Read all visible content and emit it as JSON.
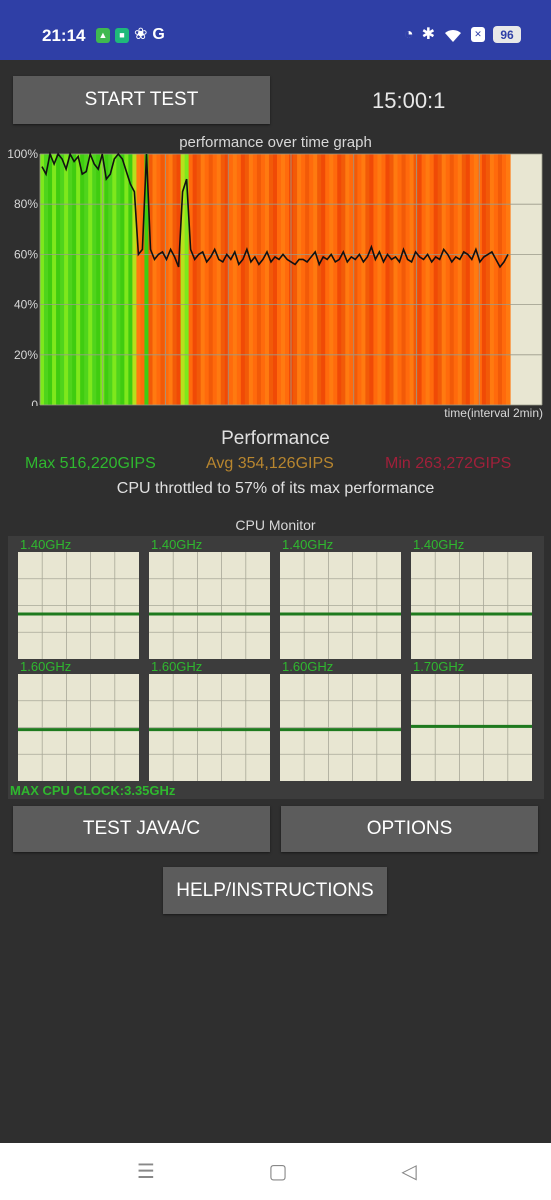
{
  "status_bar": {
    "time": "21:14",
    "google_letter": "G",
    "battery": "96",
    "icons_left": [
      "shield-icon",
      "app-icon",
      "fan-icon",
      "google-icon"
    ],
    "icons_right": [
      "gauge-icon",
      "bluetooth-icon",
      "wifi-icon",
      "sim-off-icon",
      "battery-icon"
    ]
  },
  "toolbar": {
    "start_label": "START TEST",
    "timer": "15:00:1"
  },
  "graph": {
    "title": "performance over time graph",
    "caption": "time(interval 2min)",
    "y_ticks": [
      "100%",
      "80%",
      "60%",
      "40%",
      "20%",
      "0"
    ]
  },
  "performance": {
    "title": "Performance",
    "max": "Max 516,220GIPS",
    "avg": "Avg 354,126GIPS",
    "min": "Min 263,272GIPS",
    "throttle": "CPU throttled to 57% of its max performance",
    "colors": {
      "max": "#2fb82f",
      "avg": "#b8862f",
      "min": "#a0203a"
    }
  },
  "cpu_monitor": {
    "title": "CPU Monitor",
    "cores": [
      {
        "freq": "1.40GHz",
        "load": 0.42
      },
      {
        "freq": "1.40GHz",
        "load": 0.42
      },
      {
        "freq": "1.40GHz",
        "load": 0.42
      },
      {
        "freq": "1.40GHz",
        "load": 0.42
      },
      {
        "freq": "1.60GHz",
        "load": 0.48
      },
      {
        "freq": "1.60GHz",
        "load": 0.48
      },
      {
        "freq": "1.60GHz",
        "load": 0.48
      },
      {
        "freq": "1.70GHz",
        "load": 0.51
      }
    ],
    "max_clock": "MAX CPU CLOCK:3.35GHz"
  },
  "buttons": {
    "test_java": "TEST JAVA/C",
    "options": "OPTIONS",
    "help": "HELP/INSTRUCTIONS"
  },
  "chart_data": {
    "type": "line",
    "title": "performance over time graph",
    "xlabel": "time(interval 2min)",
    "ylabel": "",
    "ylim": [
      0,
      100
    ],
    "y_tick_labels": [
      "100%",
      "80%",
      "60%",
      "40%",
      "20%",
      "0"
    ],
    "grid": true,
    "series": [
      {
        "values": [
          95,
          92,
          100,
          96,
          100,
          98,
          94,
          100,
          97,
          99,
          92,
          93,
          100,
          96,
          94,
          100,
          90,
          92,
          98,
          100,
          98,
          93,
          88,
          85,
          60,
          62,
          100,
          62,
          58,
          60,
          61,
          58,
          62,
          59,
          55,
          85,
          90,
          62,
          58,
          60,
          61,
          57,
          59,
          62,
          58,
          57,
          60,
          58,
          61,
          56,
          58,
          62,
          57,
          59,
          56,
          58,
          61,
          57,
          59,
          58,
          60,
          58,
          57,
          56,
          58,
          58,
          57,
          59,
          61,
          56,
          59,
          58,
          60,
          57,
          58,
          61,
          57,
          59,
          58,
          60,
          57,
          59,
          63,
          58,
          61,
          57,
          60,
          58,
          59,
          57,
          62,
          58,
          57,
          61,
          59,
          58,
          60,
          57,
          59,
          58,
          62,
          60,
          57,
          59,
          58,
          61,
          60,
          58,
          62,
          57,
          59,
          60,
          61,
          58,
          55,
          57,
          60
        ]
      }
    ]
  }
}
